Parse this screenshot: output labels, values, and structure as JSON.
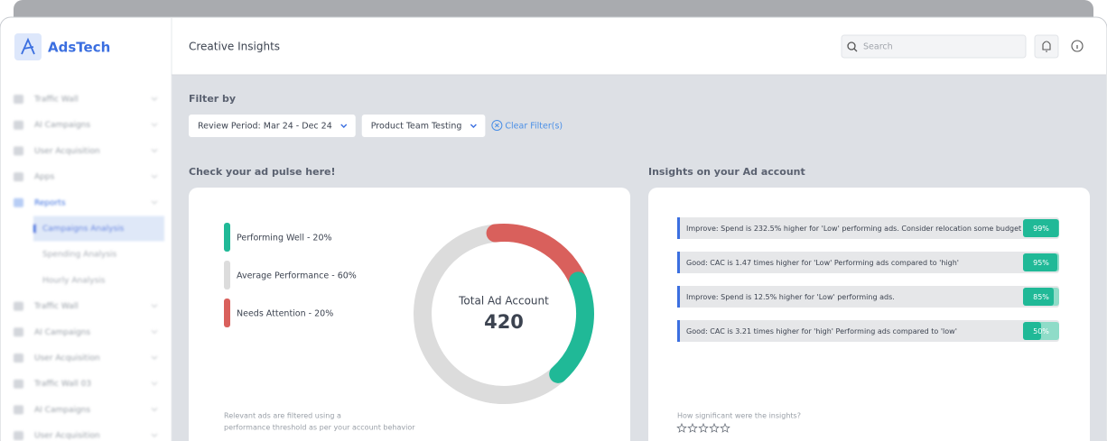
{
  "sidebar": {
    "brand": "AdsTech",
    "items": [
      {
        "label": "Traffic Wall"
      },
      {
        "label": "AI Campaigns"
      },
      {
        "label": "User Acquisition"
      },
      {
        "label": "Apps"
      },
      {
        "label": "Reports",
        "expanded": true,
        "children": [
          {
            "label": "Campaigns Analysis",
            "active": true
          },
          {
            "label": "Spending Analysis"
          },
          {
            "label": "Hourly Analysis"
          }
        ]
      },
      {
        "label": "Traffic Wall"
      },
      {
        "label": "AI Campaigns"
      },
      {
        "label": "User Acquisition"
      },
      {
        "label": "Traffic Wall 03"
      },
      {
        "label": "AI Campaigns"
      },
      {
        "label": "User Acquisition"
      }
    ]
  },
  "header": {
    "title": "Creative Insights",
    "search_placeholder": "Search"
  },
  "filters": {
    "label": "Filter by",
    "options": [
      "Review Period: Mar 24 - Dec 24",
      "Product Team Testing"
    ],
    "clear": "Clear Filter(s)"
  },
  "pulse": {
    "title": "Check your ad pulse here!",
    "legend": [
      {
        "label": "Performing Well - 20%",
        "value": 20,
        "color": "#20b997"
      },
      {
        "label": "Average Performance - 60%",
        "value": 60,
        "color": "#dcdcdc"
      },
      {
        "label": "Needs Attention - 20%",
        "value": 20,
        "color": "#d9605c"
      }
    ],
    "center_label": "Total Ad Account",
    "total": 420,
    "note": [
      "Relevant ads are filtered using a",
      "performance threshold as per your account behavior"
    ]
  },
  "insights": {
    "title": "Insights on your Ad account",
    "items": [
      {
        "text": "Improve: Spend is 232.5% higher for 'Low' performing ads. Consider relocation some budget",
        "value": 99,
        "value_label": "99%"
      },
      {
        "text": "Good: CAC is 1.47 times higher for 'Low' Performing ads compared to 'high'",
        "value": 95,
        "value_label": "95%"
      },
      {
        "text": "Improve: Spend is 12.5% higher for 'Low' performing ads.",
        "value": 85,
        "value_label": "85%"
      },
      {
        "text": "Good: CAC is 3.21 times higher for 'high' Performing ads compared to 'low'",
        "value": 50,
        "value_label": "50%"
      }
    ],
    "feedback": "How significant were the insights?"
  }
}
